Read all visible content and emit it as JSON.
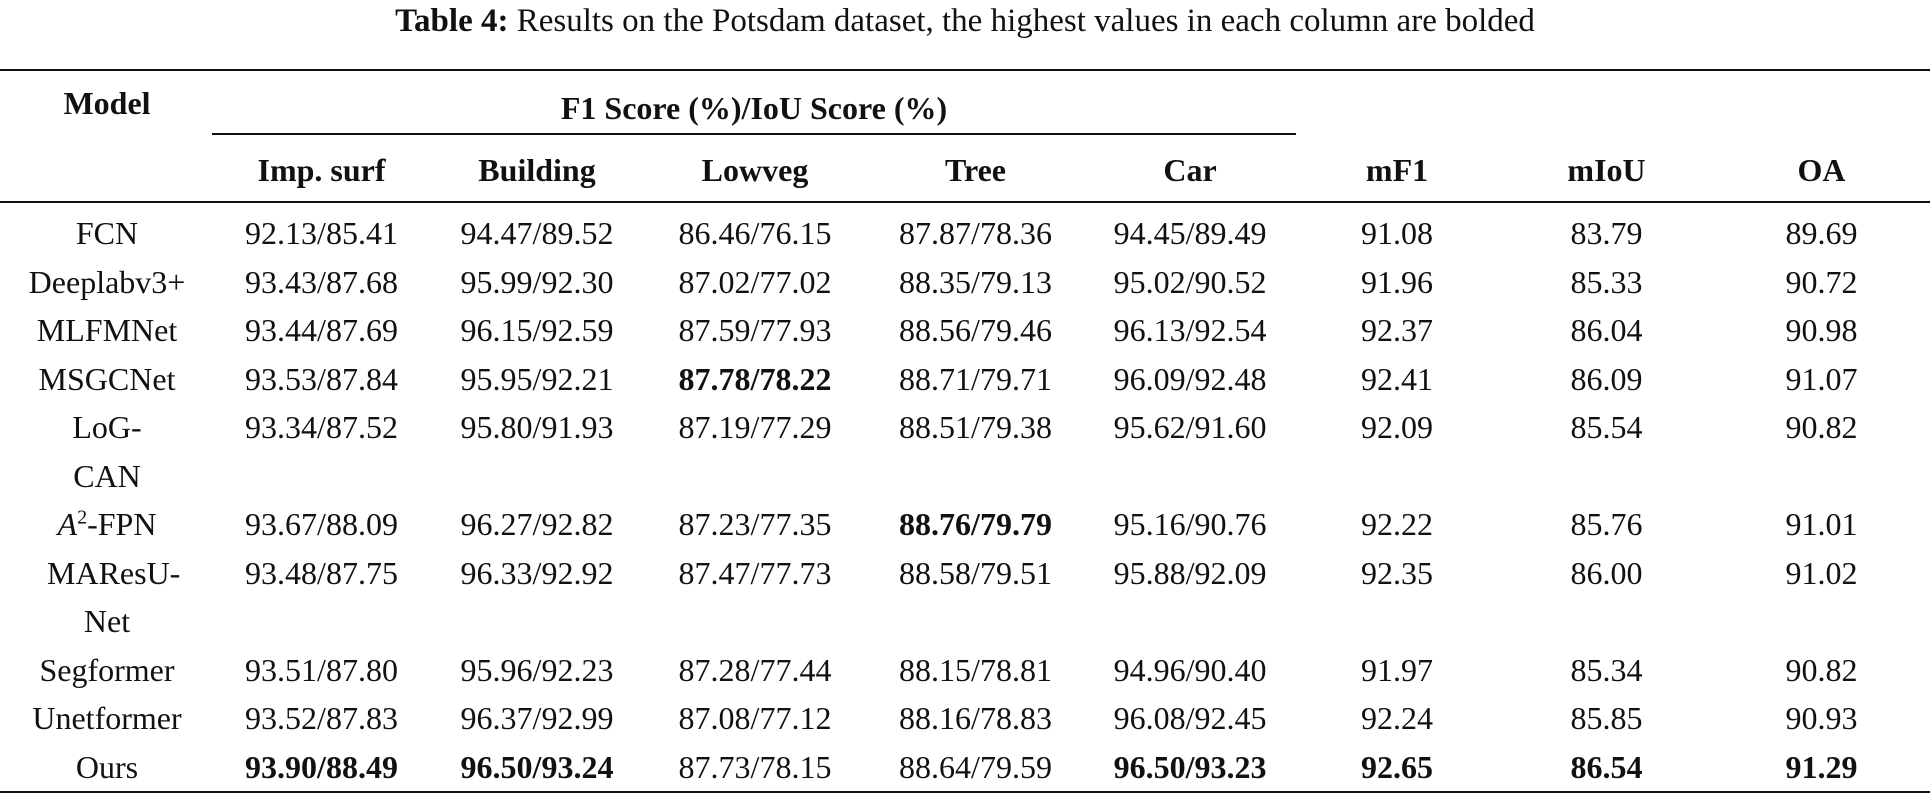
{
  "caption": {
    "label": "Table 4:",
    "text": "Results on the Potsdam dataset, the highest values in each column are bolded"
  },
  "table": {
    "header": {
      "model": "Model",
      "group": "F1 Score (%)/IoU Score (%)",
      "columns": [
        "Imp. surf",
        "Building",
        "Lowveg",
        "Tree",
        "Car",
        "mF1",
        "mIoU",
        "OA"
      ]
    },
    "rows": [
      {
        "model": "FCN",
        "cells": [
          "92.13/85.41",
          "94.47/89.52",
          "86.46/76.15",
          "87.87/78.36",
          "94.45/89.49",
          "91.08",
          "83.79",
          "89.69"
        ]
      },
      {
        "model": "Deeplabv3+",
        "cells": [
          "93.43/87.68",
          "95.99/92.30",
          "87.02/77.02",
          "88.35/79.13",
          "95.02/90.52",
          "91.96",
          "85.33",
          "90.72"
        ]
      },
      {
        "model": "MLFMNet",
        "cells": [
          "93.44/87.69",
          "96.15/92.59",
          "87.59/77.93",
          "88.56/79.46",
          "96.13/92.54",
          "92.37",
          "86.04",
          "90.98"
        ]
      },
      {
        "model": "MSGCNet",
        "cells": [
          "93.53/87.84",
          "95.95/92.21",
          "87.78/78.22",
          "88.71/79.71",
          "96.09/92.48",
          "92.41",
          "86.09",
          "91.07"
        ]
      },
      {
        "model": "LoG-CAN",
        "cells": [
          "93.34/87.52",
          "95.80/91.93",
          "87.19/77.29",
          "88.51/79.38",
          "95.62/91.60",
          "92.09",
          "85.54",
          "90.82"
        ]
      },
      {
        "model": [
          "A",
          "2",
          "-FPN"
        ],
        "cells": [
          "93.67/88.09",
          "96.27/92.82",
          "87.23/77.35",
          "88.76/79.79",
          "95.16/90.76",
          "92.22",
          "85.76",
          "91.01"
        ]
      },
      {
        "model": "MAResU-Net",
        "cells": [
          "93.48/87.75",
          "96.33/92.92",
          "87.47/77.73",
          "88.58/79.51",
          "95.88/92.09",
          "92.35",
          "86.00",
          "91.02"
        ]
      },
      {
        "model": "Segformer",
        "cells": [
          "93.51/87.80",
          "95.96/92.23",
          "87.28/77.44",
          "88.15/78.81",
          "94.96/90.40",
          "91.97",
          "85.34",
          "90.82"
        ]
      },
      {
        "model": "Unetformer",
        "cells": [
          "93.52/87.83",
          "96.37/92.99",
          "87.08/77.12",
          "88.16/78.83",
          "96.08/92.45",
          "92.24",
          "85.85",
          "90.93"
        ]
      },
      {
        "model": "Ours",
        "cells": [
          "93.90/88.49",
          "96.50/93.24",
          "87.73/78.15",
          "88.64/79.59",
          "96.50/93.23",
          "92.65",
          "86.54",
          "91.29"
        ]
      }
    ]
  }
}
